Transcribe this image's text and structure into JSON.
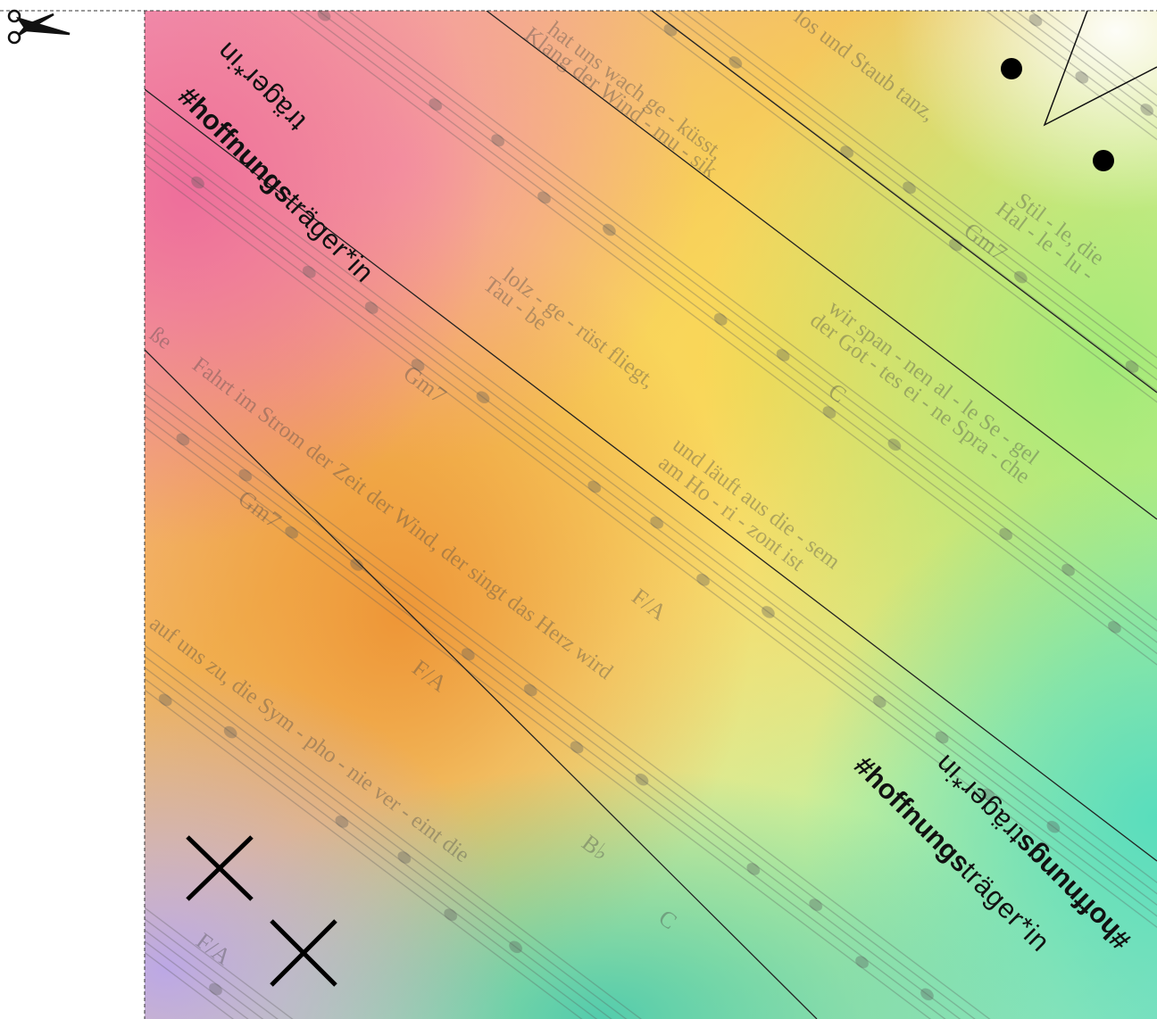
{
  "labels": [
    {
      "bold": "#hoffnungs",
      "light": "träger*in"
    },
    {
      "light": "träger*in"
    },
    {
      "bold": "#hoffnungs",
      "light": "träger*in"
    },
    {
      "bold": "#hoffnungs",
      "light": "träger*in"
    }
  ],
  "lyrics": [
    "hat uns wach ge - küsst,",
    "Klang der Wind - mu - sik",
    "los und Staub tanz,",
    "lolz - ge - rüst fliegt,",
    "Tau - be",
    "wir span - nen al - le Se - gel",
    "der Got - tes ei - ne Spra - che",
    "und läuft aus die - sem",
    "am Ho - ri - zont ist",
    "Stil - le, die",
    "Hal - le - lu -",
    "ße",
    "Fahrt im Strom der Zeit der Wind, der singt das Herz wird",
    "auf uns zu, die Sym - pho - nie ver - eint die"
  ],
  "chords": [
    "Gm7",
    "Gm7",
    "F/A",
    "F/A",
    "C",
    "Gm7",
    "B♭",
    "C",
    "F/A"
  ]
}
